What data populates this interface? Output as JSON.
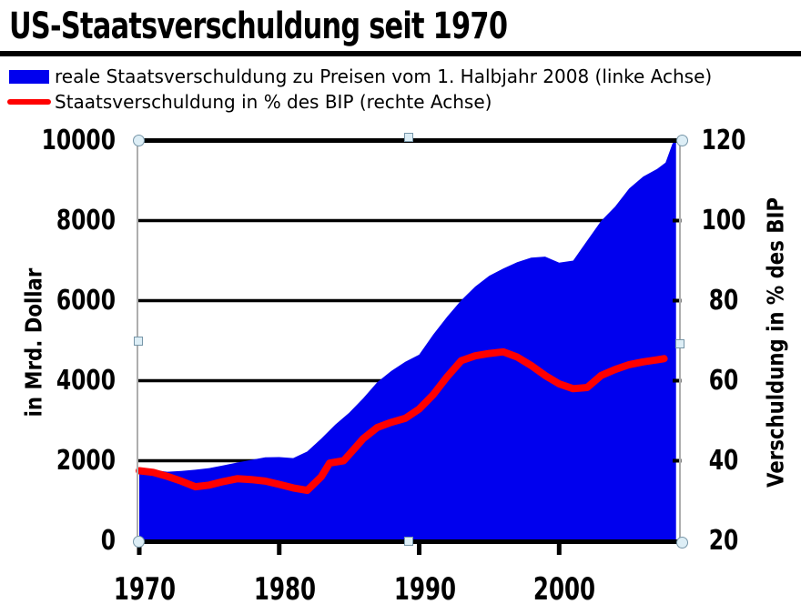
{
  "title": "US-Staatsverschuldung seit 1970",
  "legend": [
    {
      "swatch": "area",
      "color": "#0000EE",
      "label": "reale Staatsverschuldung zu Preisen vom 1. Halbjahr 2008 (linke Achse)"
    },
    {
      "swatch": "line",
      "color": "#FF0000",
      "label": "Staatsverschuldung in % des BIP (rechte Achse)"
    }
  ],
  "chart_data": {
    "type": "area+line",
    "title": "US-Staatsverschuldung seit 1970",
    "grid": true,
    "legend_position": "top-left",
    "x_axis": {
      "min": 1970,
      "max": 2008.63,
      "ticks": [
        1970,
        1980,
        1990,
        2000
      ]
    },
    "left_axis": {
      "label": "in Mrd. Dollar",
      "min": 0,
      "max": 10000,
      "ticks": [
        0,
        2000,
        4000,
        6000,
        8000,
        10000
      ]
    },
    "right_axis": {
      "label": "Verschuldung in % des BIP",
      "min": 20,
      "max": 120,
      "ticks": [
        20,
        40,
        60,
        80,
        100,
        120
      ]
    },
    "series": [
      {
        "name": "reale Staatsverschuldung zu Preisen vom 1. Halbjahr 2008",
        "type": "area",
        "axis": "left",
        "color": "#0000EE",
        "points": [
          [
            1970,
            1810
          ],
          [
            1971,
            1765
          ],
          [
            1972,
            1725
          ],
          [
            1973,
            1745
          ],
          [
            1974,
            1775
          ],
          [
            1975,
            1815
          ],
          [
            1976,
            1885
          ],
          [
            1977,
            1955
          ],
          [
            1978,
            2020
          ],
          [
            1979,
            2085
          ],
          [
            1980,
            2090
          ],
          [
            1981,
            2065
          ],
          [
            1982,
            2230
          ],
          [
            1983,
            2550
          ],
          [
            1984,
            2900
          ],
          [
            1985,
            3200
          ],
          [
            1986,
            3560
          ],
          [
            1987,
            3960
          ],
          [
            1988,
            4240
          ],
          [
            1989,
            4470
          ],
          [
            1990,
            4650
          ],
          [
            1991,
            5150
          ],
          [
            1992,
            5600
          ],
          [
            1993,
            6010
          ],
          [
            1994,
            6350
          ],
          [
            1995,
            6620
          ],
          [
            1996,
            6800
          ],
          [
            1997,
            6960
          ],
          [
            1998,
            7075
          ],
          [
            1999,
            7100
          ],
          [
            2000,
            6950
          ],
          [
            2001,
            7000
          ],
          [
            2002,
            7500
          ],
          [
            2003,
            7990
          ],
          [
            2004,
            8350
          ],
          [
            2005,
            8800
          ],
          [
            2006,
            9100
          ],
          [
            2007,
            9290
          ],
          [
            2007.6,
            9450
          ],
          [
            2008.1,
            9930
          ],
          [
            2008.35,
            10000
          ]
        ]
      },
      {
        "name": "Staatsverschuldung in % des BIP",
        "type": "line",
        "axis": "right",
        "color": "#FF0000",
        "points": [
          [
            1970,
            37.5
          ],
          [
            1971,
            37.1
          ],
          [
            1972,
            36.1
          ],
          [
            1973,
            34.9
          ],
          [
            1974,
            33.5
          ],
          [
            1975,
            33.9
          ],
          [
            1976,
            34.8
          ],
          [
            1977,
            35.5
          ],
          [
            1978,
            35.3
          ],
          [
            1979,
            34.9
          ],
          [
            1980,
            34.1
          ],
          [
            1981,
            33.2
          ],
          [
            1982,
            32.6
          ],
          [
            1983,
            36.0
          ],
          [
            1983.6,
            39.4
          ],
          [
            1984.6,
            40.0
          ],
          [
            1985.5,
            43.5
          ],
          [
            1986,
            45.5
          ],
          [
            1987,
            48.3
          ],
          [
            1988,
            49.6
          ],
          [
            1989,
            50.6
          ],
          [
            1990,
            52.9
          ],
          [
            1991,
            56.5
          ],
          [
            1992,
            61.0
          ],
          [
            1993,
            65.0
          ],
          [
            1994,
            66.2
          ],
          [
            1995,
            66.8
          ],
          [
            1996,
            67.2
          ],
          [
            1997,
            65.9
          ],
          [
            1998,
            63.8
          ],
          [
            1999,
            61.3
          ],
          [
            2000,
            59.2
          ],
          [
            2001,
            58.0
          ],
          [
            2002,
            58.3
          ],
          [
            2003,
            61.3
          ],
          [
            2004,
            62.8
          ],
          [
            2005,
            64.0
          ],
          [
            2006,
            64.7
          ],
          [
            2007,
            65.2
          ],
          [
            2007.5,
            65.5
          ]
        ]
      }
    ]
  }
}
